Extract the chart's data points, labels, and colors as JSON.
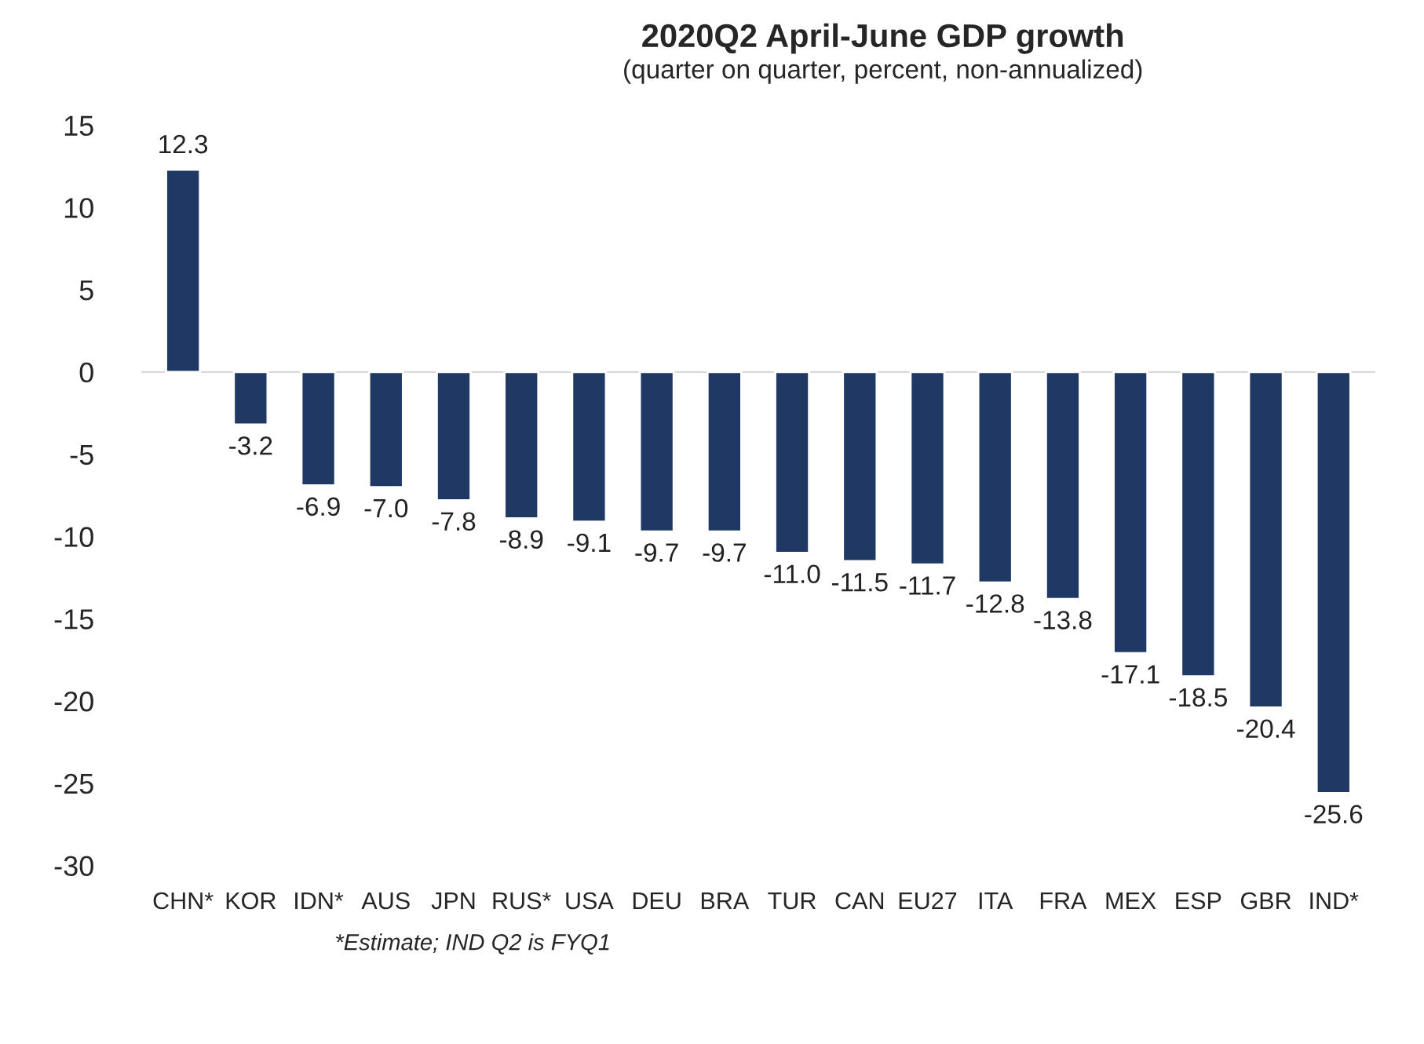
{
  "chart_data": {
    "type": "bar",
    "title": "2020Q2 April-June GDP growth",
    "subtitle": "(quarter on quarter, percent, non-annualized)",
    "categories": [
      "CHN*",
      "KOR",
      "IDN*",
      "AUS",
      "JPN",
      "RUS*",
      "USA",
      "DEU",
      "BRA",
      "TUR",
      "CAN",
      "EU27",
      "ITA",
      "FRA",
      "MEX",
      "ESP",
      "GBR",
      "IND*"
    ],
    "values": [
      12.3,
      -3.2,
      -6.9,
      -7.0,
      -7.8,
      -8.9,
      -9.1,
      -9.7,
      -9.7,
      -11.0,
      -11.5,
      -11.7,
      -12.8,
      -13.8,
      -17.1,
      -18.5,
      -20.4,
      -25.6
    ],
    "value_labels": [
      "12.3",
      "-3.2",
      "-6.9",
      "-7.0",
      "-7.8",
      "-8.9",
      "-9.1",
      "-9.7",
      "-9.7",
      "-11.0",
      "-11.5",
      "-11.7",
      "-12.8",
      "-13.8",
      "-17.1",
      "-18.5",
      "-20.4",
      "-25.6"
    ],
    "color": "#1f3864",
    "ylim": [
      -30,
      15
    ],
    "yticks": [
      -30,
      -25,
      -20,
      -15,
      -10,
      -5,
      0,
      5,
      10,
      15
    ],
    "annotations": [
      "*Estimate; IND Q2 is FYQ1"
    ],
    "legend": false
  }
}
